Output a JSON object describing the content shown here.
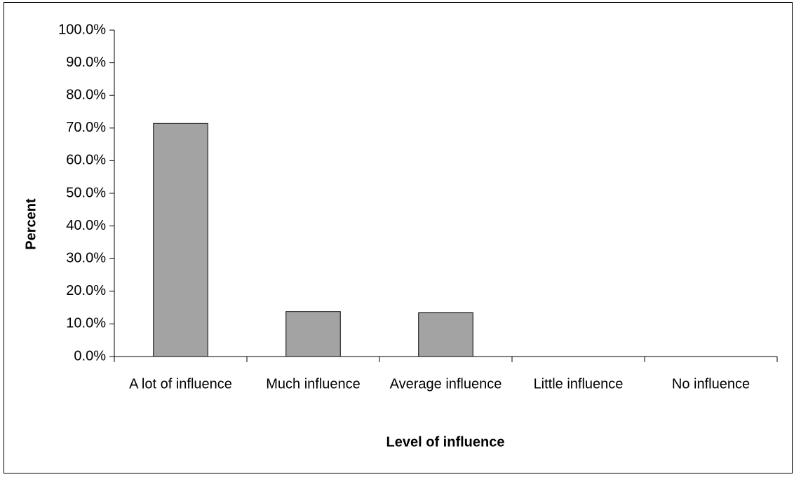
{
  "chart_data": {
    "type": "bar",
    "categories": [
      "A lot of influence",
      "Much influence",
      "Average influence",
      "Little influence",
      "No influence"
    ],
    "values": [
      71.4,
      13.8,
      13.4,
      0,
      0
    ],
    "color": "#a3a3a3",
    "xlabel": "Level of influence",
    "ylabel": "Percent",
    "ylim": [
      0,
      100
    ],
    "yticks": [
      {
        "value": 0,
        "label": "0.0%"
      },
      {
        "value": 10,
        "label": "10.0%"
      },
      {
        "value": 20,
        "label": "20.0%"
      },
      {
        "value": 30,
        "label": "30.0%"
      },
      {
        "value": 40,
        "label": "40.0%"
      },
      {
        "value": 50,
        "label": "50.0%"
      },
      {
        "value": 60,
        "label": "60.0%"
      },
      {
        "value": 70,
        "label": "70.0%"
      },
      {
        "value": 80,
        "label": "80.0%"
      },
      {
        "value": 90,
        "label": "90.0%"
      },
      {
        "value": 100,
        "label": "100.0%"
      }
    ],
    "grid": false
  }
}
